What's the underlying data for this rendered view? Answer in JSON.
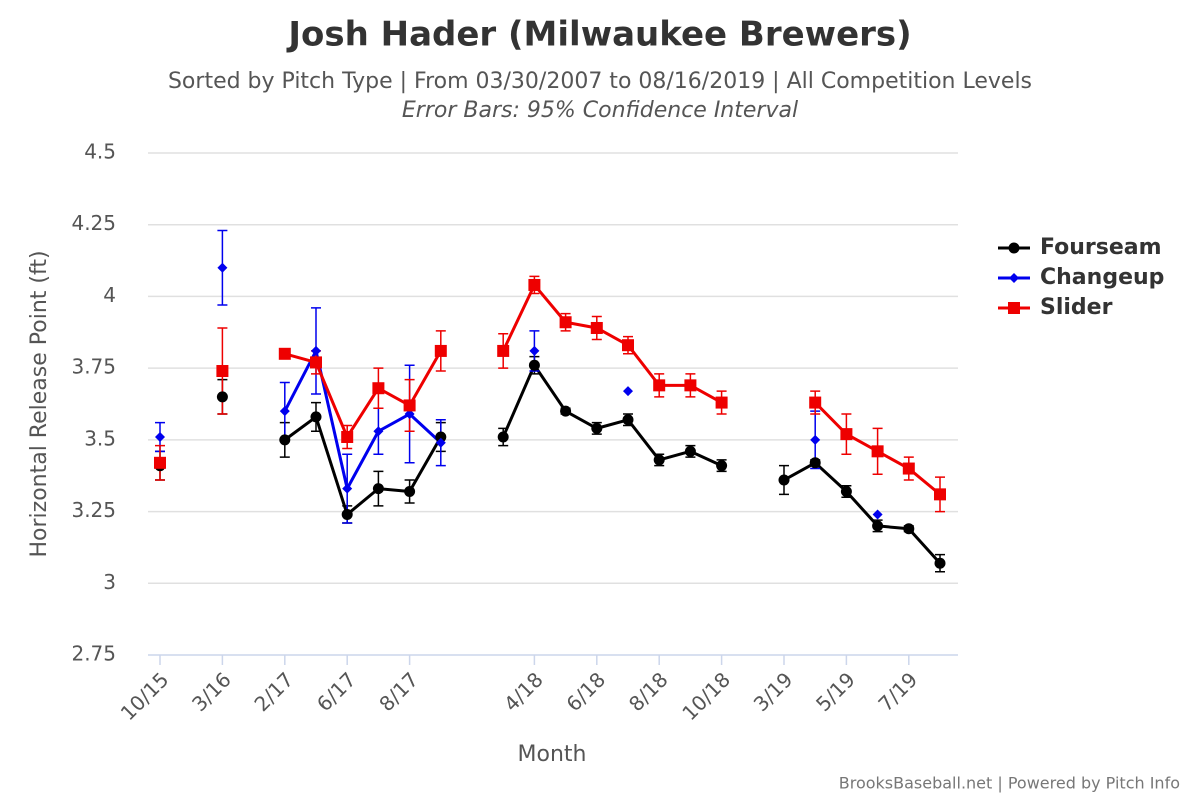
{
  "chart_data": {
    "type": "line",
    "title": "Josh Hader (Milwaukee Brewers)",
    "subtitle": "Sorted by Pitch Type | From 03/30/2007 to 08/16/2019 | All Competition Levels",
    "annotation": "Error Bars: 95% Confidence Interval",
    "x_label": "Month",
    "y_label": "Horizontal Release Point (ft)",
    "credit": "BrooksBaseball.net | Powered by Pitch Info",
    "categories": [
      "10/15",
      null,
      "3/16",
      null,
      "2/17",
      null,
      "6/17",
      null,
      "8/17",
      null,
      null,
      null,
      "4/18",
      null,
      "6/18",
      null,
      "8/18",
      null,
      "10/18",
      null,
      "3/19",
      null,
      "5/19",
      null,
      "7/19",
      null
    ],
    "ylim": [
      2.75,
      4.5
    ],
    "yticks": [
      2.75,
      3,
      3.25,
      3.5,
      3.75,
      4,
      4.25,
      4.5
    ],
    "grid": true,
    "legend": "right",
    "series": [
      {
        "name": "Fourseam",
        "color": "#000000",
        "marker": "circle",
        "values": [
          3.41,
          null,
          3.65,
          null,
          3.5,
          3.58,
          3.24,
          3.33,
          3.32,
          3.51,
          null,
          3.51,
          3.76,
          3.6,
          3.54,
          3.57,
          3.43,
          3.46,
          3.41,
          null,
          3.36,
          3.42,
          3.32,
          3.2,
          3.19,
          3.07
        ],
        "errors": [
          0.05,
          null,
          0.06,
          null,
          0.06,
          0.05,
          0.03,
          0.06,
          0.04,
          0.05,
          null,
          0.03,
          0.03,
          0.01,
          0.02,
          0.02,
          0.02,
          0.02,
          0.02,
          null,
          0.05,
          0.01,
          0.02,
          0.02,
          0.01,
          0.03
        ]
      },
      {
        "name": "Changeup",
        "color": "#0000ee",
        "marker": "diamond",
        "values": [
          3.51,
          null,
          4.1,
          null,
          3.6,
          3.81,
          3.33,
          3.53,
          3.59,
          3.49,
          null,
          null,
          3.81,
          null,
          null,
          3.67,
          null,
          null,
          null,
          null,
          null,
          3.5,
          null,
          3.24,
          null,
          null
        ],
        "errors": [
          0.05,
          null,
          0.13,
          null,
          0.1,
          0.15,
          0.12,
          0.08,
          0.17,
          0.08,
          null,
          null,
          0.07,
          null,
          null,
          null,
          null,
          null,
          null,
          null,
          null,
          0.1,
          null,
          null,
          null,
          null
        ]
      },
      {
        "name": "Slider",
        "color": "#ee0000",
        "marker": "square",
        "values": [
          3.42,
          null,
          3.74,
          null,
          3.8,
          3.77,
          3.51,
          3.68,
          3.62,
          3.81,
          null,
          3.81,
          4.04,
          3.91,
          3.89,
          3.83,
          3.69,
          3.69,
          3.63,
          null,
          null,
          3.63,
          3.52,
          3.46,
          3.4,
          3.31
        ],
        "errors": [
          0.06,
          null,
          0.15,
          null,
          null,
          0.04,
          0.04,
          0.07,
          0.09,
          0.07,
          null,
          0.06,
          0.03,
          0.03,
          0.04,
          0.03,
          0.04,
          0.04,
          0.04,
          null,
          null,
          0.04,
          0.07,
          0.08,
          0.04,
          0.06
        ]
      }
    ]
  }
}
